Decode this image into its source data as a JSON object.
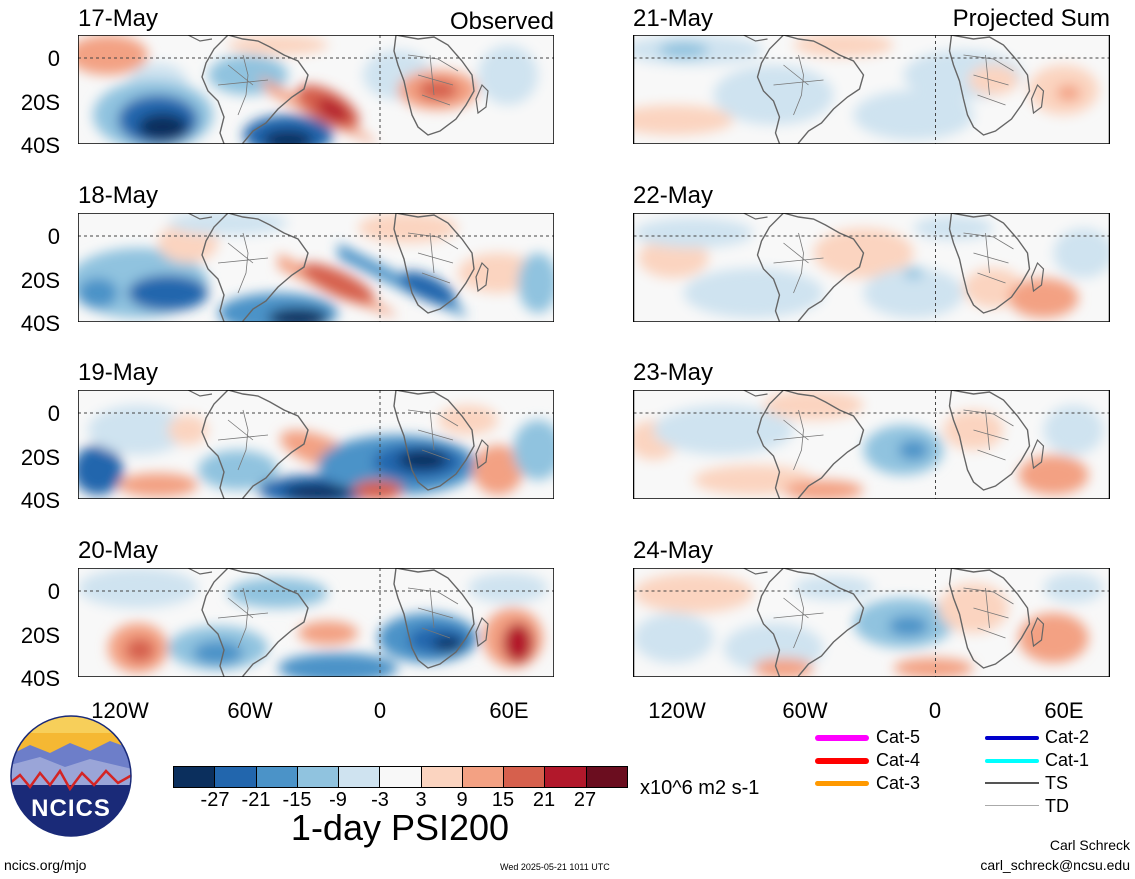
{
  "figure": {
    "title": "1-day PSI200",
    "units": "x10^6 m2 s-1",
    "source_link": "ncics.org/mjo",
    "timestamp": "Wed 2025-05-21 1011 UTC",
    "author": "Carl Schreck",
    "email": "carl_schreck@ncsu.edu",
    "logo_text": "NCICS"
  },
  "columns": {
    "left_tag": "Observed",
    "right_tag": "Projected Sum"
  },
  "panels_left": [
    {
      "date": "17-May"
    },
    {
      "date": "18-May"
    },
    {
      "date": "19-May"
    },
    {
      "date": "20-May"
    }
  ],
  "panels_right": [
    {
      "date": "21-May"
    },
    {
      "date": "22-May"
    },
    {
      "date": "23-May"
    },
    {
      "date": "24-May"
    }
  ],
  "axes": {
    "y_ticks": [
      "0",
      "20S",
      "40S"
    ],
    "x_ticks": [
      "120W",
      "60W",
      "0",
      "60E"
    ]
  },
  "colorbar": {
    "ticks": [
      "-27",
      "-21",
      "-15",
      "-9",
      "-3",
      "3",
      "9",
      "15",
      "21",
      "27"
    ],
    "colors": [
      "#0b2f5d",
      "#2266ad",
      "#4b93c8",
      "#90c3df",
      "#cfe3f0",
      "#f8f8f8",
      "#fbd4c0",
      "#f3a183",
      "#d6604d",
      "#b2182b",
      "#6b0d1f"
    ]
  },
  "legend": [
    {
      "label": "Cat-5",
      "color": "#ff00ff",
      "width": 6
    },
    {
      "label": "Cat-2",
      "color": "#0000cc",
      "width": 4
    },
    {
      "label": "Cat-4",
      "color": "#ff0000",
      "width": 6
    },
    {
      "label": "Cat-1",
      "color": "#00ffff",
      "width": 4
    },
    {
      "label": "Cat-3",
      "color": "#ff9900",
      "width": 5
    },
    {
      "label": "TS",
      "color": "#555555",
      "width": 2
    },
    {
      "label": "TD",
      "color": "#aaaaaa",
      "width": 1
    }
  ]
}
